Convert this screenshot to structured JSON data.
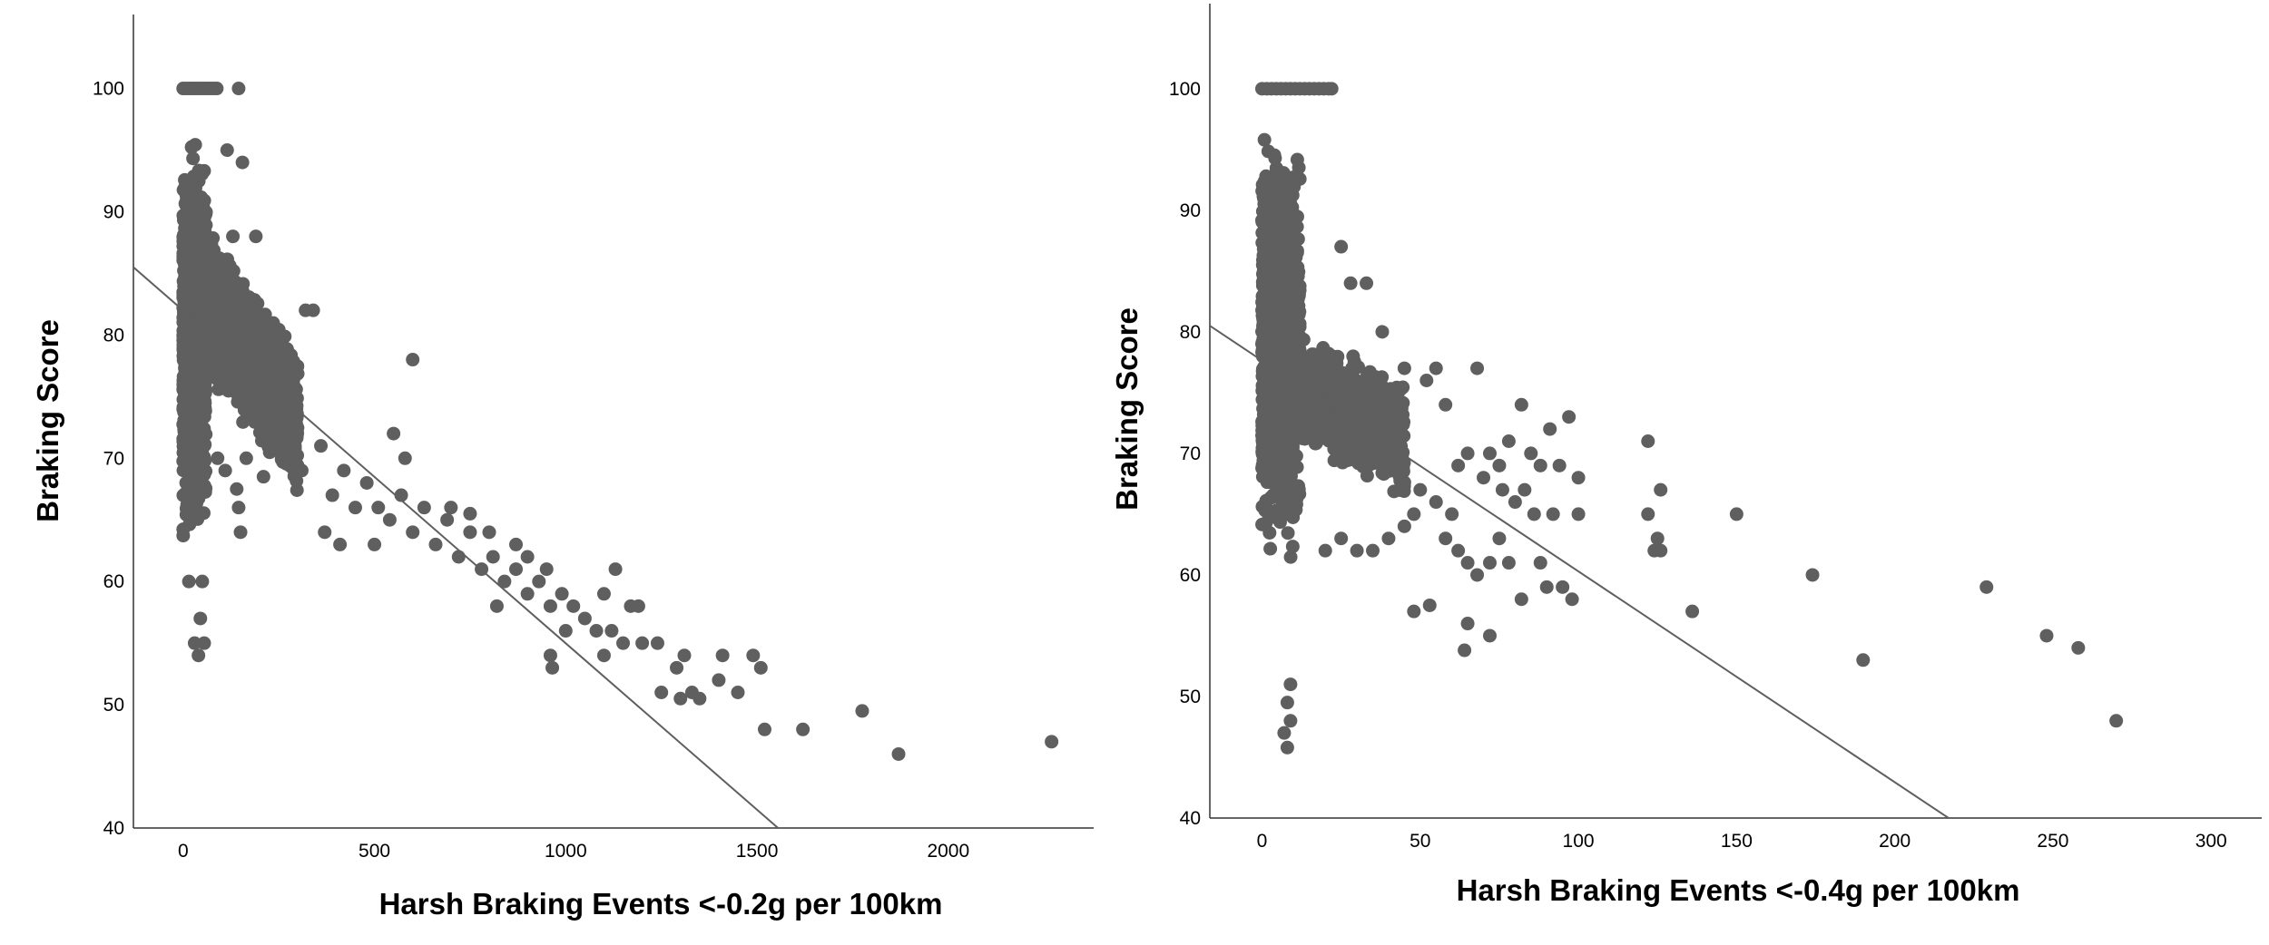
{
  "chart_data": [
    {
      "type": "scatter",
      "title": "",
      "xlabel": "Harsh Braking Events <-0.2g per 100km",
      "ylabel": "Braking Score",
      "xlim": [
        -130,
        2380
      ],
      "ylim": [
        40,
        106
      ],
      "xticks": [
        0,
        500,
        1000,
        1500,
        2000
      ],
      "yticks": [
        40,
        50,
        60,
        70,
        80,
        90,
        100
      ],
      "grid": false,
      "legend": "none",
      "marker_color": "#5f5f5f",
      "line_color": "#5f5f5f",
      "fit_line": {
        "x": [
          -130,
          1555
        ],
        "y": [
          85.5,
          40
        ]
      },
      "cloud": {
        "x_range": [
          0,
          60
        ],
        "y_range": [
          54,
          100
        ],
        "count": 900
      },
      "band": {
        "x_range": [
          30,
          300
        ],
        "center_at_min": 84,
        "center_at_max": 73,
        "spread": 6,
        "count": 1300
      },
      "points": [
        {
          "x": 0,
          "y": 100
        },
        {
          "x": 8,
          "y": 100
        },
        {
          "x": 16,
          "y": 100
        },
        {
          "x": 24,
          "y": 100
        },
        {
          "x": 32,
          "y": 100
        },
        {
          "x": 40,
          "y": 100
        },
        {
          "x": 48,
          "y": 100
        },
        {
          "x": 56,
          "y": 100
        },
        {
          "x": 64,
          "y": 100
        },
        {
          "x": 72,
          "y": 100
        },
        {
          "x": 80,
          "y": 100
        },
        {
          "x": 88,
          "y": 100
        },
        {
          "x": 145,
          "y": 100
        },
        {
          "x": 40,
          "y": 54
        },
        {
          "x": 30,
          "y": 55
        },
        {
          "x": 55,
          "y": 55
        },
        {
          "x": 45,
          "y": 57
        },
        {
          "x": 15,
          "y": 60
        },
        {
          "x": 50,
          "y": 60
        },
        {
          "x": 115,
          "y": 95
        },
        {
          "x": 155,
          "y": 94
        },
        {
          "x": 190,
          "y": 88
        },
        {
          "x": 130,
          "y": 88
        },
        {
          "x": 150,
          "y": 64
        },
        {
          "x": 145,
          "y": 66
        },
        {
          "x": 140,
          "y": 67.5
        },
        {
          "x": 110,
          "y": 69
        },
        {
          "x": 90,
          "y": 70
        },
        {
          "x": 165,
          "y": 70
        },
        {
          "x": 210,
          "y": 68.5
        },
        {
          "x": 320,
          "y": 82
        },
        {
          "x": 340,
          "y": 82
        },
        {
          "x": 600,
          "y": 78
        },
        {
          "x": 310,
          "y": 69
        },
        {
          "x": 360,
          "y": 71
        },
        {
          "x": 390,
          "y": 67
        },
        {
          "x": 420,
          "y": 69
        },
        {
          "x": 450,
          "y": 66
        },
        {
          "x": 480,
          "y": 68
        },
        {
          "x": 510,
          "y": 66
        },
        {
          "x": 540,
          "y": 65
        },
        {
          "x": 570,
          "y": 67
        },
        {
          "x": 600,
          "y": 64
        },
        {
          "x": 630,
          "y": 66
        },
        {
          "x": 660,
          "y": 63
        },
        {
          "x": 690,
          "y": 65
        },
        {
          "x": 720,
          "y": 62
        },
        {
          "x": 750,
          "y": 64
        },
        {
          "x": 780,
          "y": 61
        },
        {
          "x": 810,
          "y": 62
        },
        {
          "x": 840,
          "y": 60
        },
        {
          "x": 870,
          "y": 61
        },
        {
          "x": 900,
          "y": 59
        },
        {
          "x": 930,
          "y": 60
        },
        {
          "x": 960,
          "y": 58
        },
        {
          "x": 990,
          "y": 59
        },
        {
          "x": 370,
          "y": 64
        },
        {
          "x": 410,
          "y": 63
        },
        {
          "x": 500,
          "y": 63
        },
        {
          "x": 550,
          "y": 72
        },
        {
          "x": 580,
          "y": 70
        },
        {
          "x": 700,
          "y": 66
        },
        {
          "x": 750,
          "y": 65.5
        },
        {
          "x": 800,
          "y": 64
        },
        {
          "x": 820,
          "y": 58
        },
        {
          "x": 870,
          "y": 63
        },
        {
          "x": 900,
          "y": 62
        },
        {
          "x": 950,
          "y": 61
        },
        {
          "x": 960,
          "y": 54
        },
        {
          "x": 965,
          "y": 53
        },
        {
          "x": 1000,
          "y": 56
        },
        {
          "x": 1020,
          "y": 58
        },
        {
          "x": 1050,
          "y": 57
        },
        {
          "x": 1080,
          "y": 56
        },
        {
          "x": 1100,
          "y": 59
        },
        {
          "x": 1100,
          "y": 54
        },
        {
          "x": 1120,
          "y": 56
        },
        {
          "x": 1130,
          "y": 61
        },
        {
          "x": 1150,
          "y": 55
        },
        {
          "x": 1170,
          "y": 58
        },
        {
          "x": 1190,
          "y": 58
        },
        {
          "x": 1200,
          "y": 55
        },
        {
          "x": 1240,
          "y": 55
        },
        {
          "x": 1250,
          "y": 51
        },
        {
          "x": 1290,
          "y": 53
        },
        {
          "x": 1300,
          "y": 50.5
        },
        {
          "x": 1310,
          "y": 54
        },
        {
          "x": 1330,
          "y": 51
        },
        {
          "x": 1350,
          "y": 50.5
        },
        {
          "x": 1400,
          "y": 52
        },
        {
          "x": 1410,
          "y": 54
        },
        {
          "x": 1450,
          "y": 51
        },
        {
          "x": 1490,
          "y": 54
        },
        {
          "x": 1510,
          "y": 53
        },
        {
          "x": 1520,
          "y": 48
        },
        {
          "x": 1620,
          "y": 48
        },
        {
          "x": 1775,
          "y": 49.5
        },
        {
          "x": 1870,
          "y": 46
        },
        {
          "x": 2270,
          "y": 47
        }
      ]
    },
    {
      "type": "scatter",
      "title": "",
      "xlabel": "Harsh Braking Events <-0.4g per 100km",
      "ylabel": "Braking Score",
      "xlim": [
        -16.5,
        316
      ],
      "ylim": [
        40,
        107
      ],
      "xticks": [
        0,
        50,
        100,
        150,
        200,
        250,
        300
      ],
      "yticks": [
        40,
        50,
        60,
        70,
        80,
        90,
        100
      ],
      "grid": false,
      "legend": "none",
      "marker_color": "#5f5f5f",
      "line_color": "#5f5f5f",
      "fit_line": {
        "x": [
          -16.5,
          217
        ],
        "y": [
          80.5,
          40
        ]
      },
      "cloud": {
        "x_range": [
          0,
          12
        ],
        "y_range": [
          53,
          100
        ],
        "count": 1100
      },
      "band": {
        "x_range": [
          8,
          45
        ],
        "center_at_min": 76,
        "center_at_max": 71,
        "spread": 5,
        "count": 650
      },
      "points": [
        {
          "x": 0,
          "y": 100
        },
        {
          "x": 1.5,
          "y": 100
        },
        {
          "x": 3,
          "y": 100
        },
        {
          "x": 4.5,
          "y": 100
        },
        {
          "x": 6,
          "y": 100
        },
        {
          "x": 7.5,
          "y": 100
        },
        {
          "x": 9,
          "y": 100
        },
        {
          "x": 10.5,
          "y": 100
        },
        {
          "x": 12,
          "y": 100
        },
        {
          "x": 13.5,
          "y": 100
        },
        {
          "x": 15,
          "y": 100
        },
        {
          "x": 16.5,
          "y": 100
        },
        {
          "x": 18,
          "y": 100
        },
        {
          "x": 19.5,
          "y": 100
        },
        {
          "x": 21,
          "y": 100
        },
        {
          "x": 22,
          "y": 100
        },
        {
          "x": 8,
          "y": 45.8
        },
        {
          "x": 7,
          "y": 47
        },
        {
          "x": 9,
          "y": 48
        },
        {
          "x": 8,
          "y": 49.5
        },
        {
          "x": 9,
          "y": 51
        },
        {
          "x": 25,
          "y": 87
        },
        {
          "x": 28,
          "y": 84
        },
        {
          "x": 33,
          "y": 84
        },
        {
          "x": 38,
          "y": 80
        },
        {
          "x": 45,
          "y": 77
        },
        {
          "x": 52,
          "y": 76
        },
        {
          "x": 55,
          "y": 77
        },
        {
          "x": 58,
          "y": 74
        },
        {
          "x": 68,
          "y": 77
        },
        {
          "x": 72,
          "y": 70
        },
        {
          "x": 75,
          "y": 69
        },
        {
          "x": 78,
          "y": 71
        },
        {
          "x": 82,
          "y": 74
        },
        {
          "x": 85,
          "y": 70
        },
        {
          "x": 88,
          "y": 69
        },
        {
          "x": 91,
          "y": 72
        },
        {
          "x": 94,
          "y": 69
        },
        {
          "x": 97,
          "y": 73
        },
        {
          "x": 100,
          "y": 68
        },
        {
          "x": 65,
          "y": 70
        },
        {
          "x": 62,
          "y": 69
        },
        {
          "x": 70,
          "y": 68
        },
        {
          "x": 76,
          "y": 67
        },
        {
          "x": 80,
          "y": 66
        },
        {
          "x": 83,
          "y": 67
        },
        {
          "x": 86,
          "y": 65
        },
        {
          "x": 92,
          "y": 65
        },
        {
          "x": 100,
          "y": 65
        },
        {
          "x": 60,
          "y": 65
        },
        {
          "x": 55,
          "y": 66
        },
        {
          "x": 50,
          "y": 67
        },
        {
          "x": 48,
          "y": 65
        },
        {
          "x": 45,
          "y": 64
        },
        {
          "x": 40,
          "y": 63
        },
        {
          "x": 35,
          "y": 62
        },
        {
          "x": 30,
          "y": 62
        },
        {
          "x": 25,
          "y": 63
        },
        {
          "x": 20,
          "y": 62
        },
        {
          "x": 58,
          "y": 63
        },
        {
          "x": 62,
          "y": 62
        },
        {
          "x": 65,
          "y": 61
        },
        {
          "x": 68,
          "y": 60
        },
        {
          "x": 72,
          "y": 61
        },
        {
          "x": 75,
          "y": 63
        },
        {
          "x": 78,
          "y": 61
        },
        {
          "x": 82,
          "y": 58
        },
        {
          "x": 88,
          "y": 61
        },
        {
          "x": 90,
          "y": 59
        },
        {
          "x": 95,
          "y": 59
        },
        {
          "x": 98,
          "y": 58
        },
        {
          "x": 48,
          "y": 57
        },
        {
          "x": 53,
          "y": 57.5
        },
        {
          "x": 65,
          "y": 56
        },
        {
          "x": 72,
          "y": 55
        },
        {
          "x": 64,
          "y": 53.8
        },
        {
          "x": 122,
          "y": 71
        },
        {
          "x": 122,
          "y": 65
        },
        {
          "x": 124,
          "y": 62
        },
        {
          "x": 125,
          "y": 63
        },
        {
          "x": 126,
          "y": 67
        },
        {
          "x": 126,
          "y": 62
        },
        {
          "x": 150,
          "y": 65
        },
        {
          "x": 136,
          "y": 57
        },
        {
          "x": 174,
          "y": 60
        },
        {
          "x": 190,
          "y": 53
        },
        {
          "x": 229,
          "y": 59
        },
        {
          "x": 248,
          "y": 55
        },
        {
          "x": 258,
          "y": 54
        },
        {
          "x": 270,
          "y": 48
        }
      ]
    }
  ]
}
